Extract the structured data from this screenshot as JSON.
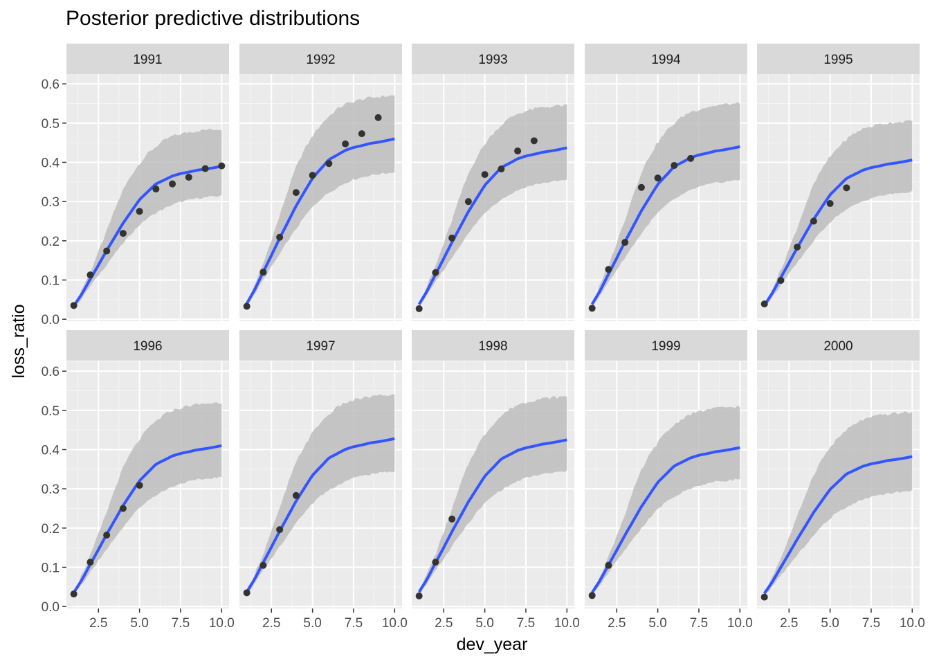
{
  "chart_data": {
    "type": "line",
    "title": "Posterior predictive distributions",
    "xlabel": "dev_year",
    "ylabel": "loss_ratio",
    "xlim": [
      0.55,
      10.45
    ],
    "ylim": [
      -0.005,
      0.625
    ],
    "x_ticks": [
      2.5,
      5.0,
      7.5,
      10.0
    ],
    "x_tick_labels": [
      "2.5",
      "5.0",
      "7.5",
      "10.0"
    ],
    "y_ticks": [
      0.0,
      0.1,
      0.2,
      0.3,
      0.4,
      0.5,
      0.6
    ],
    "y_tick_labels": [
      "0.0",
      "0.1",
      "0.2",
      "0.3",
      "0.4",
      "0.5",
      "0.6"
    ],
    "grid": true,
    "colors": {
      "panel_bg": "#ebebeb",
      "strip_bg": "#d9d9d9",
      "ribbon": "#bdbdbd",
      "line": "#3355ff",
      "points": "#333333"
    },
    "facets": [
      {
        "label": "1991",
        "mean_final": 0.39,
        "lower_final": 0.315,
        "upper_final": 0.485,
        "points": [
          [
            1,
            0.035
          ],
          [
            2,
            0.113
          ],
          [
            3,
            0.174
          ],
          [
            4,
            0.219
          ],
          [
            5,
            0.275
          ],
          [
            6,
            0.332
          ],
          [
            7,
            0.345
          ],
          [
            8,
            0.362
          ],
          [
            9,
            0.384
          ],
          [
            10,
            0.391
          ]
        ]
      },
      {
        "label": "1992",
        "mean_final": 0.46,
        "lower_final": 0.375,
        "upper_final": 0.57,
        "points": [
          [
            1,
            0.033
          ],
          [
            2,
            0.12
          ],
          [
            3,
            0.209
          ],
          [
            4,
            0.323
          ],
          [
            5,
            0.367
          ],
          [
            6,
            0.397
          ],
          [
            7,
            0.447
          ],
          [
            8,
            0.473
          ],
          [
            9,
            0.514
          ]
        ]
      },
      {
        "label": "1993",
        "mean_final": 0.437,
        "lower_final": 0.355,
        "upper_final": 0.545,
        "points": [
          [
            1,
            0.027
          ],
          [
            2,
            0.119
          ],
          [
            3,
            0.207
          ],
          [
            4,
            0.3
          ],
          [
            5,
            0.369
          ],
          [
            6,
            0.383
          ],
          [
            7,
            0.429
          ],
          [
            8,
            0.455
          ]
        ]
      },
      {
        "label": "1994",
        "mean_final": 0.44,
        "lower_final": 0.355,
        "upper_final": 0.55,
        "points": [
          [
            1,
            0.028
          ],
          [
            2,
            0.127
          ],
          [
            3,
            0.196
          ],
          [
            4,
            0.336
          ],
          [
            5,
            0.36
          ],
          [
            6,
            0.392
          ],
          [
            7,
            0.41
          ]
        ]
      },
      {
        "label": "1995",
        "mean_final": 0.406,
        "lower_final": 0.325,
        "upper_final": 0.505,
        "points": [
          [
            1,
            0.039
          ],
          [
            2,
            0.099
          ],
          [
            3,
            0.184
          ],
          [
            4,
            0.25
          ],
          [
            5,
            0.295
          ],
          [
            6,
            0.335
          ]
        ]
      },
      {
        "label": "1996",
        "mean_final": 0.41,
        "lower_final": 0.33,
        "upper_final": 0.52,
        "points": [
          [
            1,
            0.032
          ],
          [
            2,
            0.113
          ],
          [
            3,
            0.182
          ],
          [
            4,
            0.25
          ],
          [
            5,
            0.309
          ]
        ]
      },
      {
        "label": "1997",
        "mean_final": 0.428,
        "lower_final": 0.345,
        "upper_final": 0.54,
        "points": [
          [
            1,
            0.035
          ],
          [
            2,
            0.105
          ],
          [
            3,
            0.196
          ],
          [
            4,
            0.283
          ]
        ]
      },
      {
        "label": "1998",
        "mean_final": 0.425,
        "lower_final": 0.345,
        "upper_final": 0.535,
        "points": [
          [
            1,
            0.027
          ],
          [
            2,
            0.113
          ],
          [
            3,
            0.223
          ]
        ]
      },
      {
        "label": "1999",
        "mean_final": 0.405,
        "lower_final": 0.325,
        "upper_final": 0.51,
        "points": [
          [
            1,
            0.028
          ],
          [
            2,
            0.105
          ]
        ]
      },
      {
        "label": "2000",
        "mean_final": 0.382,
        "lower_final": 0.295,
        "upper_final": 0.495,
        "points": [
          [
            1,
            0.024
          ]
        ]
      }
    ]
  }
}
